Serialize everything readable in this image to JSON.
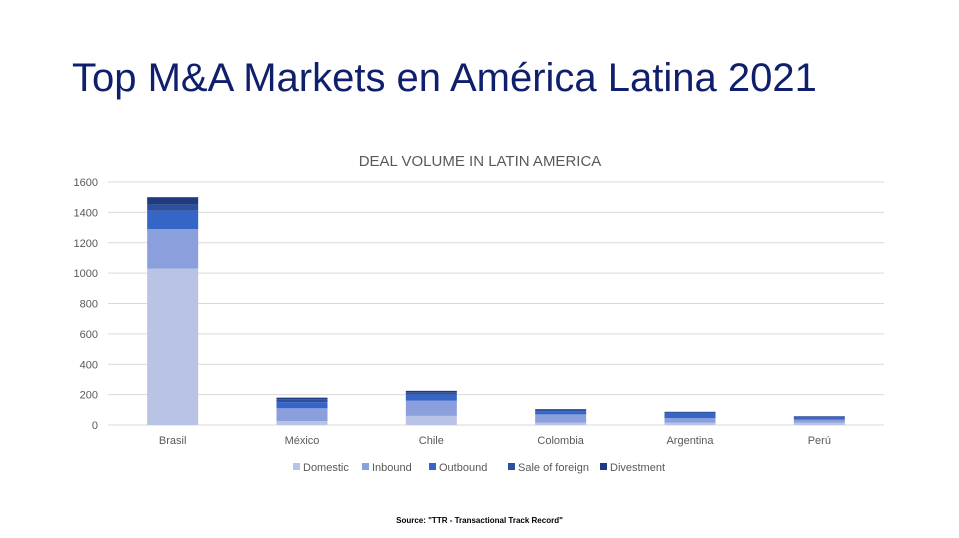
{
  "slide": {
    "title": "Top M&A Markets en América Latina 2021",
    "source": "Source: \"TTR - Transactional Track Record\""
  },
  "chart_data": {
    "type": "bar",
    "stacked": true,
    "title": "DEAL VOLUME IN LATIN AMERICA",
    "xlabel": "",
    "ylabel": "",
    "ylim": [
      0,
      1600
    ],
    "yticks": [
      0,
      200,
      400,
      600,
      800,
      1000,
      1200,
      1400,
      1600
    ],
    "grid": true,
    "legend_position": "bottom",
    "categories": [
      "Brasil",
      "México",
      "Chile",
      "Colombia",
      "Argentina",
      "Perú"
    ],
    "series": [
      {
        "name": "Domestic",
        "color": "#b9c3e6",
        "values": [
          1030,
          25,
          60,
          15,
          15,
          15
        ]
      },
      {
        "name": "Inbound",
        "color": "#8a9fdb",
        "values": [
          260,
          85,
          100,
          55,
          30,
          20
        ]
      },
      {
        "name": "Outbound",
        "color": "#3565c7",
        "values": [
          120,
          40,
          40,
          20,
          30,
          15
        ]
      },
      {
        "name": "Sale of foreign",
        "color": "#2d4f9f",
        "values": [
          40,
          20,
          15,
          10,
          8,
          5
        ]
      },
      {
        "name": "Divestment",
        "color": "#1f3a80",
        "values": [
          50,
          10,
          10,
          5,
          4,
          3
        ]
      }
    ]
  }
}
